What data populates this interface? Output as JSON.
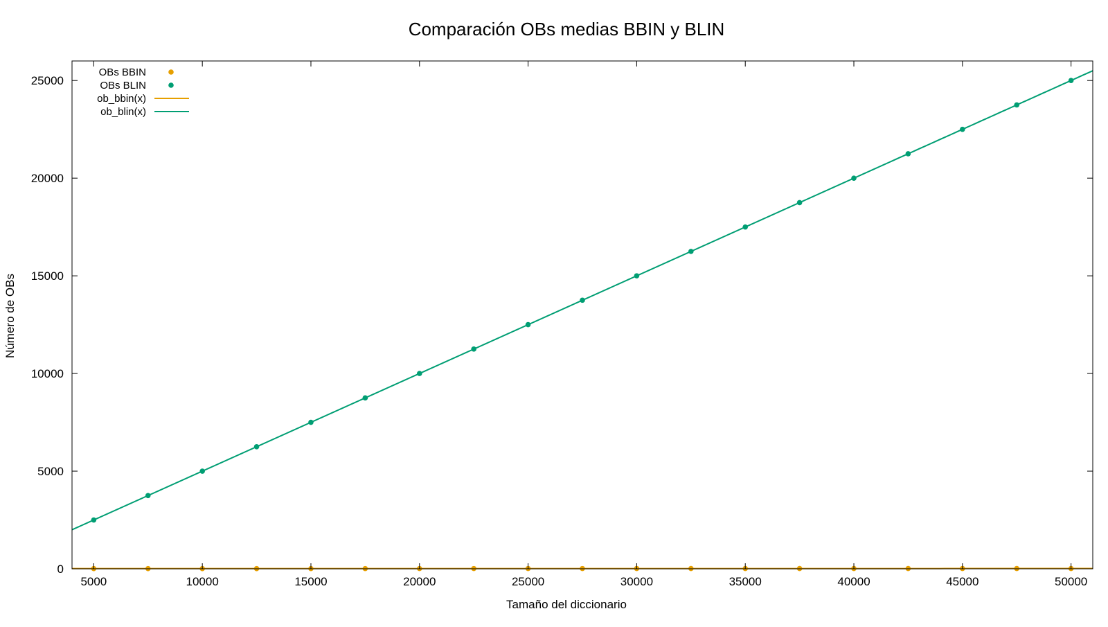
{
  "chart_data": {
    "type": "scatter",
    "title": "Comparación OBs medias BBIN y BLIN",
    "xlabel": "Tamaño del diccionario",
    "ylabel": "Número de OBs",
    "xlim": [
      4000,
      51000
    ],
    "ylim": [
      0,
      26000
    ],
    "xticks": [
      5000,
      10000,
      15000,
      20000,
      25000,
      30000,
      35000,
      40000,
      45000,
      50000
    ],
    "yticks": [
      0,
      5000,
      10000,
      15000,
      20000,
      25000
    ],
    "grid": false,
    "legend_position": "top-left",
    "legend": [
      {
        "label": "OBs BBIN",
        "kind": "points",
        "color": "#e69f00"
      },
      {
        "label": "OBs BLIN",
        "kind": "points",
        "color": "#009e73"
      },
      {
        "label": "ob_bbin(x)",
        "kind": "line",
        "color": "#e69f00"
      },
      {
        "label": "ob_blin(x)",
        "kind": "line",
        "color": "#009e73"
      }
    ],
    "x": [
      5000,
      7500,
      10000,
      12500,
      15000,
      17500,
      20000,
      22500,
      25000,
      27500,
      30000,
      32500,
      35000,
      37500,
      40000,
      42500,
      45000,
      47500,
      50000
    ],
    "series": [
      {
        "name": "OBs BBIN",
        "kind": "points",
        "color": "#e69f00",
        "values": [
          11.3,
          11.9,
          12.3,
          12.6,
          12.9,
          13.1,
          13.3,
          13.5,
          13.6,
          13.7,
          13.9,
          14.0,
          14.1,
          14.2,
          14.3,
          14.4,
          14.5,
          14.5,
          14.6
        ]
      },
      {
        "name": "OBs BLIN",
        "kind": "points",
        "color": "#009e73",
        "values": [
          2500,
          3750,
          5000,
          6250,
          7500,
          8750,
          10000,
          11250,
          12500,
          13750,
          15000,
          16250,
          17500,
          18750,
          20000,
          21250,
          22500,
          23750,
          25000
        ]
      },
      {
        "name": "ob_bbin(x)",
        "kind": "line",
        "color": "#e69f00",
        "fit": "log2(x)"
      },
      {
        "name": "ob_blin(x)",
        "kind": "line",
        "color": "#009e73",
        "fit": "x/2"
      }
    ]
  }
}
